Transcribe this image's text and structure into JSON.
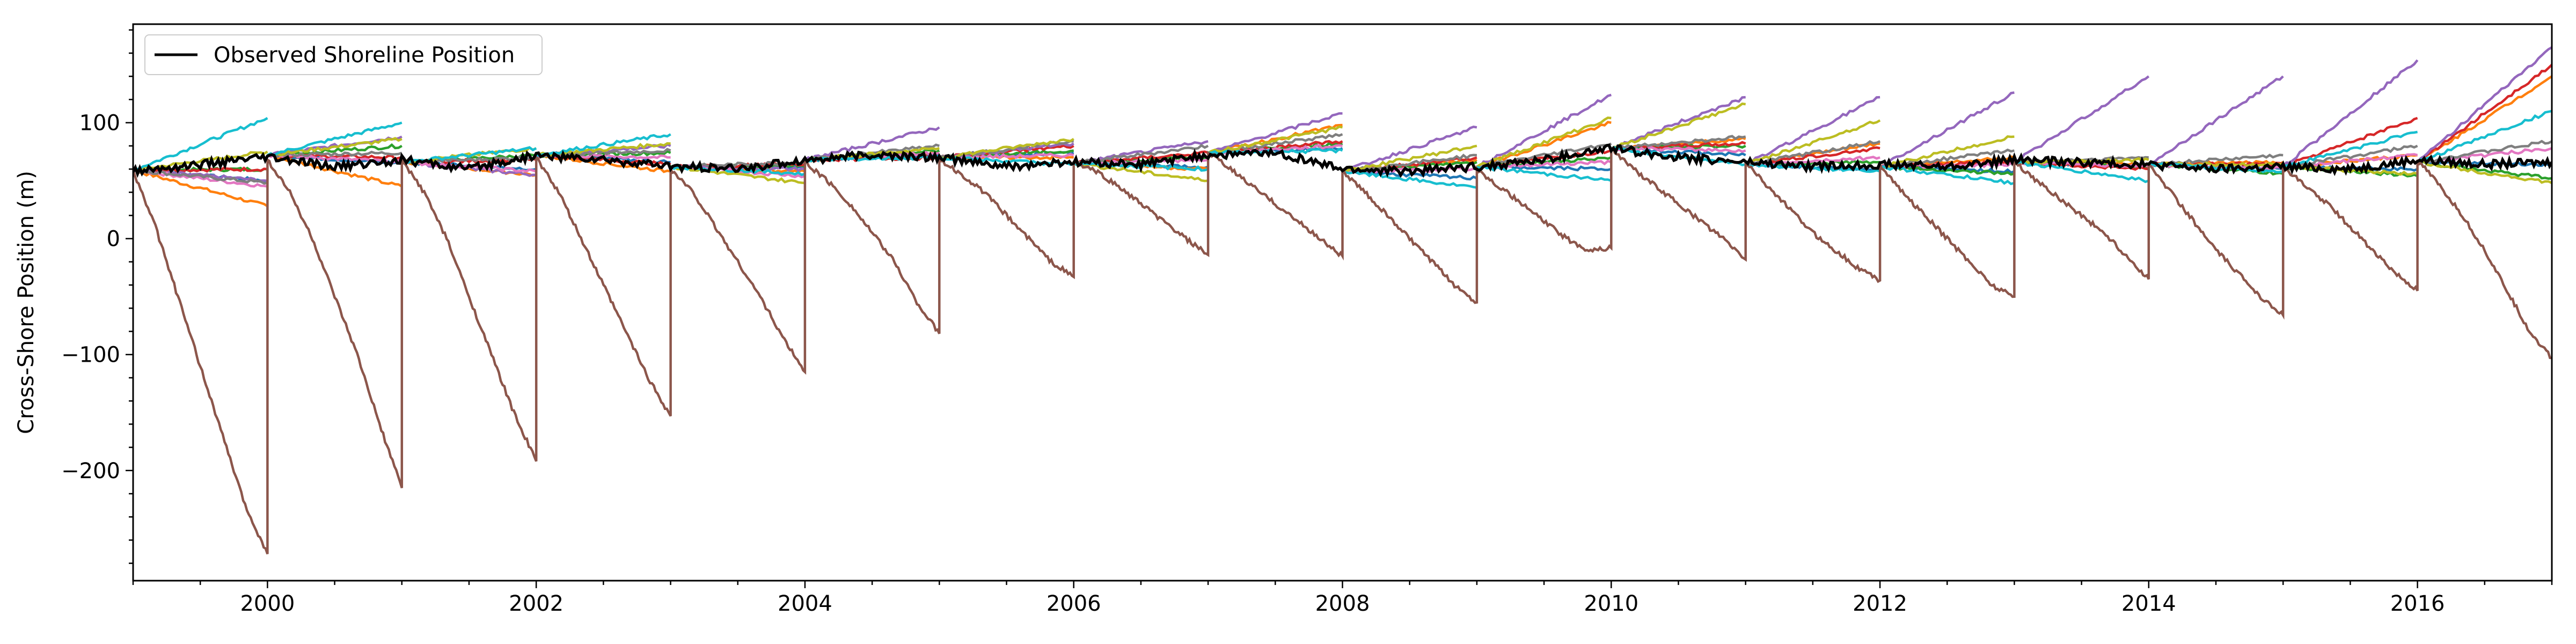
{
  "chart_data": {
    "type": "line",
    "title": "",
    "xlabel": "",
    "ylabel": "Cross-Shore Position (m)",
    "xlim": [
      1999.0,
      2017.0
    ],
    "ylim": [
      -295,
      185
    ],
    "xticks": [
      2000,
      2002,
      2004,
      2006,
      2008,
      2010,
      2012,
      2014,
      2016
    ],
    "xtick_labels": [
      "2000",
      "2002",
      "2004",
      "2006",
      "2008",
      "2010",
      "2012",
      "2014",
      "2016"
    ],
    "yticks": [
      100,
      0,
      -100,
      -200
    ],
    "ytick_labels": [
      "100",
      "0",
      "−100",
      "−200"
    ],
    "grid": false,
    "legend_position": "top-left",
    "legend": [
      {
        "label": "Observed Shoreline Position",
        "color": "#000000"
      }
    ],
    "observed": {
      "name": "Observed Shoreline Position",
      "color": "#000000",
      "x": [
        1999.0,
        1999.5,
        2000.0,
        2000.5,
        2001.0,
        2001.5,
        2002.0,
        2002.5,
        2003.0,
        2003.5,
        2004.0,
        2004.5,
        2005.0,
        2005.5,
        2006.0,
        2006.5,
        2007.0,
        2007.5,
        2008.0,
        2008.5,
        2009.0,
        2009.5,
        2010.0,
        2010.5,
        2011.0,
        2011.5,
        2012.0,
        2012.5,
        2013.0,
        2013.5,
        2014.0,
        2014.5,
        2015.0,
        2015.5,
        2016.0,
        2016.5,
        2017.0
      ],
      "y": [
        58,
        64,
        70,
        62,
        68,
        60,
        72,
        68,
        62,
        60,
        68,
        72,
        70,
        62,
        66,
        64,
        72,
        74,
        60,
        58,
        62,
        68,
        78,
        70,
        66,
        62,
        64,
        62,
        68,
        66,
        64,
        60,
        62,
        60,
        68,
        64,
        66
      ]
    },
    "forecast_colors": [
      "#1f77b4",
      "#ff7f0e",
      "#2ca02c",
      "#d62728",
      "#9467bd",
      "#8c564b",
      "#e377c2",
      "#7f7f7f",
      "#bcbd22",
      "#17becf"
    ],
    "forecasts": [
      {
        "start": 1999.0,
        "start_value": 59,
        "end_values": [
          50,
          28,
          60,
          60,
          50,
          60,
          45,
          48,
          75,
          104
        ],
        "brown_trajectory": [
          59,
          10,
          -50,
          -110,
          -170,
          -230,
          -272
        ]
      },
      {
        "start": 2000.0,
        "start_value": 72,
        "end_values": [
          65,
          45,
          80,
          70,
          88,
          72,
          66,
          74,
          86,
          100
        ],
        "brown_trajectory": [
          68,
          40,
          0,
          -50,
          -100,
          -160,
          -215
        ]
      },
      {
        "start": 2001.0,
        "start_value": 66,
        "end_values": [
          60,
          55,
          72,
          68,
          55,
          66,
          58,
          70,
          78,
          78
        ],
        "brown_trajectory": [
          68,
          40,
          0,
          -50,
          -100,
          -150,
          -192
        ]
      },
      {
        "start": 2002.0,
        "start_value": 72,
        "end_values": [
          66,
          58,
          74,
          64,
          80,
          72,
          70,
          76,
          82,
          90
        ],
        "brown_trajectory": [
          70,
          40,
          0,
          -40,
          -80,
          -120,
          -153
        ]
      },
      {
        "start": 2003.0,
        "start_value": 62,
        "end_values": [
          62,
          58,
          62,
          64,
          60,
          62,
          54,
          66,
          48,
          56
        ],
        "brown_trajectory": [
          60,
          40,
          10,
          -20,
          -50,
          -85,
          -115
        ]
      },
      {
        "start": 2004.0,
        "start_value": 68,
        "end_values": [
          72,
          74,
          76,
          70,
          96,
          68,
          74,
          80,
          78,
          70
        ],
        "brown_trajectory": [
          66,
          50,
          30,
          5,
          -20,
          -55,
          -82
        ]
      },
      {
        "start": 2005.0,
        "start_value": 70,
        "end_values": [
          74,
          70,
          76,
          80,
          82,
          70,
          72,
          84,
          86,
          64
        ],
        "brown_trajectory": [
          68,
          55,
          40,
          20,
          0,
          -20,
          -33
        ]
      },
      {
        "start": 2006.0,
        "start_value": 65,
        "end_values": [
          62,
          60,
          70,
          74,
          84,
          64,
          68,
          80,
          50,
          60
        ],
        "brown_trajectory": [
          66,
          58,
          45,
          30,
          15,
          0,
          -14
        ]
      },
      {
        "start": 2007.0,
        "start_value": 74,
        "end_values": [
          78,
          98,
          82,
          84,
          108,
          74,
          80,
          90,
          96,
          76
        ],
        "brown_trajectory": [
          74,
          60,
          45,
          30,
          15,
          0,
          -15
        ]
      },
      {
        "start": 2008.0,
        "start_value": 58,
        "end_values": [
          52,
          68,
          66,
          70,
          96,
          58,
          60,
          72,
          80,
          44
        ],
        "brown_trajectory": [
          58,
          40,
          20,
          0,
          -20,
          -40,
          -55
        ]
      },
      {
        "start": 2009.0,
        "start_value": 62,
        "end_values": [
          60,
          100,
          70,
          76,
          124,
          62,
          66,
          82,
          104,
          50
        ],
        "brown_trajectory": [
          60,
          45,
          30,
          15,
          0,
          -10,
          -8
        ]
      },
      {
        "start": 2010.0,
        "start_value": 78,
        "end_values": [
          72,
          86,
          80,
          82,
          122,
          74,
          76,
          88,
          116,
          64
        ],
        "brown_trajectory": [
          78,
          60,
          45,
          30,
          15,
          0,
          -18
        ]
      },
      {
        "start": 2011.0,
        "start_value": 64,
        "end_values": [
          60,
          82,
          66,
          78,
          122,
          64,
          70,
          84,
          102,
          58
        ],
        "brown_trajectory": [
          66,
          45,
          25,
          5,
          -10,
          -25,
          -36
        ]
      },
      {
        "start": 2012.0,
        "start_value": 62,
        "end_values": [
          58,
          70,
          56,
          66,
          126,
          62,
          64,
          76,
          88,
          48
        ],
        "brown_trajectory": [
          64,
          40,
          20,
          0,
          -20,
          -40,
          -50
        ]
      },
      {
        "start": 2013.0,
        "start_value": 66,
        "end_values": [
          62,
          64,
          62,
          60,
          140,
          66,
          62,
          70,
          68,
          50
        ],
        "brown_trajectory": [
          66,
          50,
          35,
          20,
          5,
          -15,
          -35
        ]
      },
      {
        "start": 2014.0,
        "start_value": 64,
        "end_values": [
          60,
          66,
          56,
          64,
          140,
          64,
          60,
          72,
          64,
          58
        ],
        "brown_trajectory": [
          64,
          40,
          15,
          -10,
          -30,
          -50,
          -66
        ]
      },
      {
        "start": 2015.0,
        "start_value": 62,
        "end_values": [
          60,
          72,
          54,
          104,
          154,
          62,
          72,
          80,
          56,
          92
        ],
        "brown_trajectory": [
          62,
          45,
          30,
          10,
          -10,
          -30,
          -45
        ]
      },
      {
        "start": 2016.0,
        "start_value": 66,
        "end_values": [
          64,
          140,
          52,
          150,
          165,
          66,
          78,
          84,
          48,
          110
        ],
        "brown_trajectory": [
          68,
          45,
          20,
          -10,
          -45,
          -80,
          -103
        ]
      }
    ]
  }
}
